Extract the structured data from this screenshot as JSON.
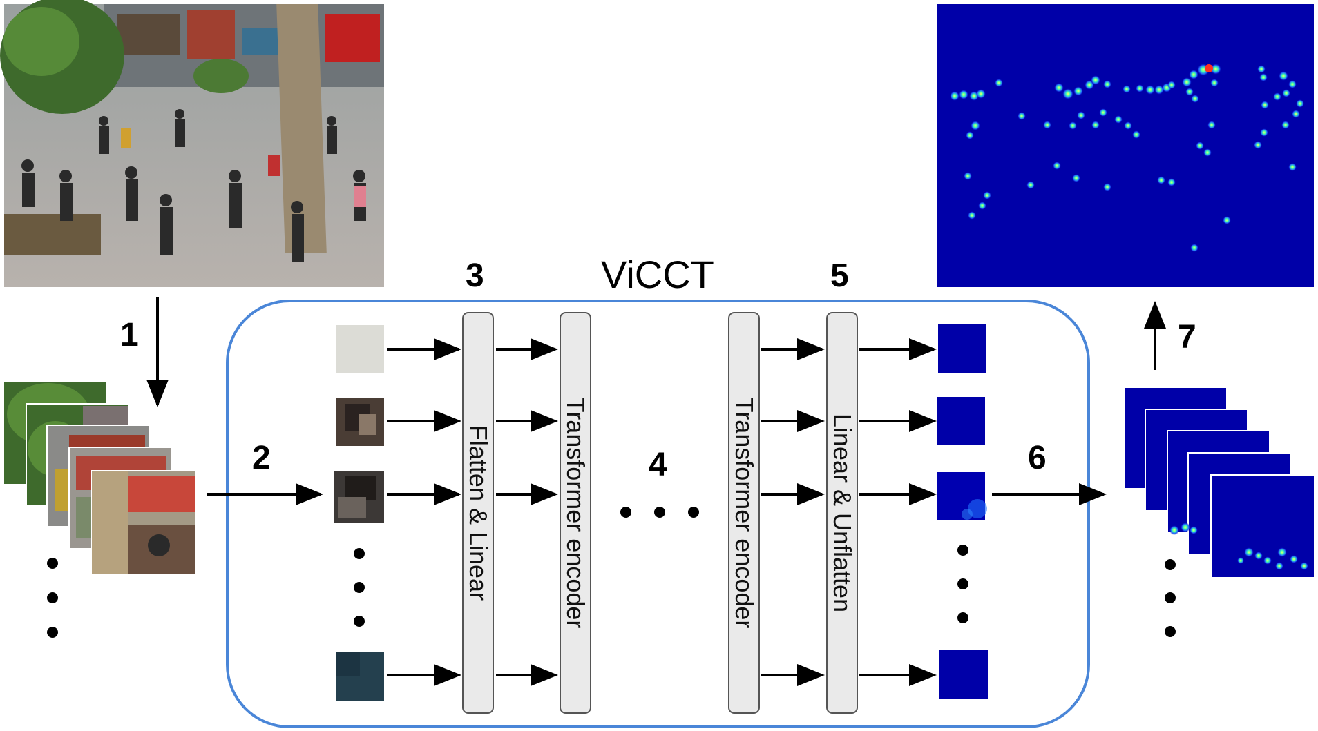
{
  "diagram": {
    "title": "ViCCT",
    "steps": [
      "1",
      "2",
      "3",
      "4",
      "5",
      "6",
      "7"
    ],
    "layers": [
      {
        "label": "Flatten & Linear"
      },
      {
        "label": "Transformer encoder"
      },
      {
        "label": "Transformer encoder"
      },
      {
        "label": "Linear & Unflatten"
      }
    ]
  },
  "colors": {
    "frame": "#4a86d8",
    "bar_fill": "#eaeaea",
    "bar_border": "#555555",
    "density_bg": "#0000a8",
    "arrow": "#000000"
  }
}
